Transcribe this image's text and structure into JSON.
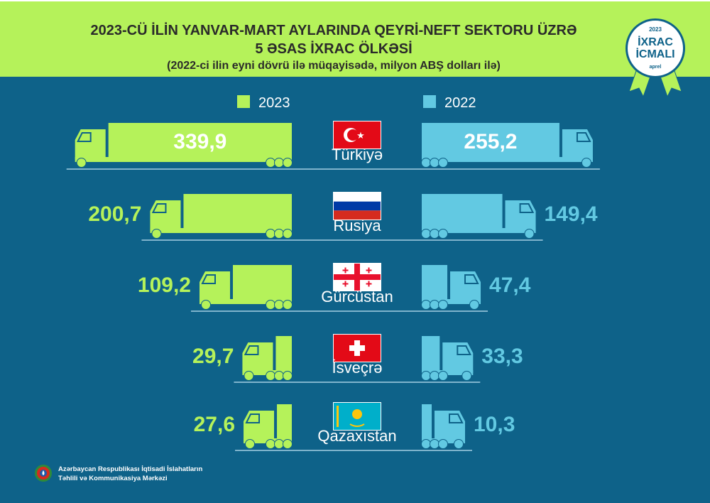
{
  "header": {
    "title_line1": "2023-CÜ İLİN YANVAR-MART AYLARINDA QEYRİ-NEFT SEKTORU ÜZRƏ",
    "title_line2": "5 ƏSAS İXRAC ÖLKƏSİ",
    "subtitle": "(2022-ci ilin eyni dövrü ilə müqayisədə, milyon ABŞ dolları ilə)"
  },
  "badge": {
    "year": "2023",
    "line1": "İXRAC",
    "line2": "İCMALI",
    "month": "aprel"
  },
  "footer": {
    "line1": "Azərbaycan Respublikası İqtisadi İslahatların",
    "line2": "Təhlili və Kommunikasiya Mərkəzi"
  },
  "chart_data": {
    "type": "bar",
    "categories": [
      "Türkiyə",
      "Rusiya",
      "Gürcüstan",
      "İsveçrə",
      "Qazaxıstan"
    ],
    "series": [
      {
        "name": "2023",
        "color": "#b5f25a",
        "values": [
          339.9,
          200.7,
          109.2,
          29.7,
          27.6
        ],
        "labels": [
          "339,9",
          "200,7",
          "109,2",
          "29,7",
          "27,6"
        ]
      },
      {
        "name": "2022",
        "color": "#62c9e2",
        "values": [
          255.2,
          149.4,
          47.4,
          33.3,
          10.3
        ],
        "labels": [
          "255,2",
          "149,4",
          "47,4",
          "33,3",
          "10,3"
        ]
      }
    ],
    "flags": [
      "turkey-flag",
      "russia-flag",
      "georgia-flag",
      "switzerland-flag",
      "kazakhstan-flag"
    ],
    "legend_placement": "top"
  }
}
